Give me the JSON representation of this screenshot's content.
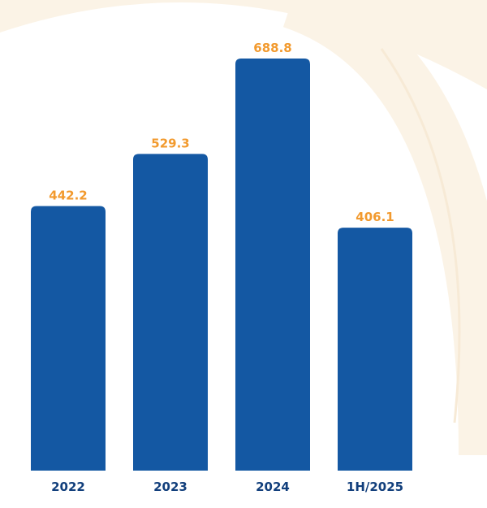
{
  "chart_data": {
    "type": "bar",
    "categories": [
      "2022",
      "2023",
      "2024",
      "1H/2025"
    ],
    "values": [
      442.2,
      529.3,
      688.8,
      406.1
    ],
    "value_labels": [
      "442.2",
      "529.3",
      "688.8",
      "406.1"
    ],
    "ylim": [
      0,
      750
    ],
    "grid": false,
    "legend": "none"
  },
  "colors": {
    "bar": "#1458a3",
    "value_label": "#f29a2e",
    "category_label": "#123f7c",
    "background_arc": "#fbf3e6"
  }
}
